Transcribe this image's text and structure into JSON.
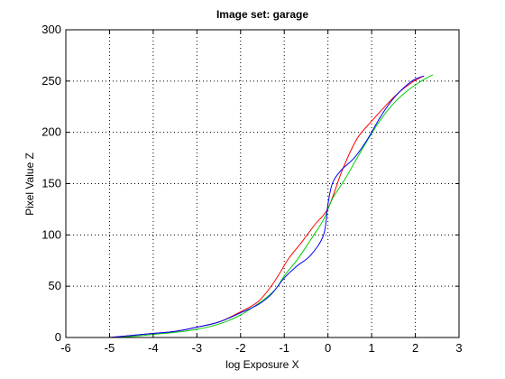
{
  "chart_data": {
    "type": "line",
    "title": "Image set: garage",
    "xlabel": "log Exposure X",
    "ylabel": "Pixel Value Z",
    "xlim": [
      -6,
      3
    ],
    "ylim": [
      0,
      300
    ],
    "xticks": [
      -6,
      -5,
      -4,
      -3,
      -2,
      -1,
      0,
      1,
      2,
      3
    ],
    "yticks": [
      0,
      50,
      100,
      150,
      200,
      250,
      300
    ],
    "grid": true,
    "grid_style": "dotted",
    "series": [
      {
        "color": "#ff0000",
        "x": [
          -5.0,
          -4.5,
          -4.0,
          -3.5,
          -3.0,
          -2.5,
          -2.0,
          -1.6,
          -1.3,
          -1.1,
          -0.9,
          -0.6,
          -0.3,
          0.0,
          0.3,
          0.5,
          0.7,
          1.0,
          1.3,
          1.6,
          1.9,
          2.1,
          2.2
        ],
        "values": [
          0,
          2,
          4,
          6,
          10,
          15,
          25,
          35,
          50,
          63,
          77,
          93,
          110,
          126,
          160,
          180,
          196,
          211,
          225,
          238,
          248,
          253,
          255
        ]
      },
      {
        "color": "#00cc00",
        "x": [
          -5.0,
          -4.5,
          -4.0,
          -3.5,
          -3.0,
          -2.5,
          -2.0,
          -1.5,
          -1.2,
          -1.0,
          -0.7,
          -0.4,
          -0.1,
          0.1,
          0.4,
          0.6,
          0.9,
          1.2,
          1.5,
          1.8,
          2.1,
          2.3,
          2.4
        ],
        "values": [
          0,
          1,
          3,
          5,
          8,
          13,
          22,
          36,
          47,
          60,
          76,
          95,
          115,
          135,
          155,
          170,
          192,
          212,
          228,
          240,
          249,
          254,
          256
        ]
      },
      {
        "color": "#0000ff",
        "x": [
          -5.0,
          -4.5,
          -4.0,
          -3.5,
          -3.0,
          -2.5,
          -2.0,
          -1.6,
          -1.3,
          -1.0,
          -0.7,
          -0.4,
          -0.1,
          0.0,
          0.1,
          0.3,
          0.6,
          0.9,
          1.2,
          1.5,
          1.8,
          2.0,
          2.2
        ],
        "values": [
          0,
          2,
          4,
          6,
          10,
          15,
          24,
          32,
          42,
          58,
          70,
          80,
          100,
          130,
          150,
          163,
          175,
          193,
          215,
          233,
          246,
          252,
          255
        ]
      }
    ]
  }
}
